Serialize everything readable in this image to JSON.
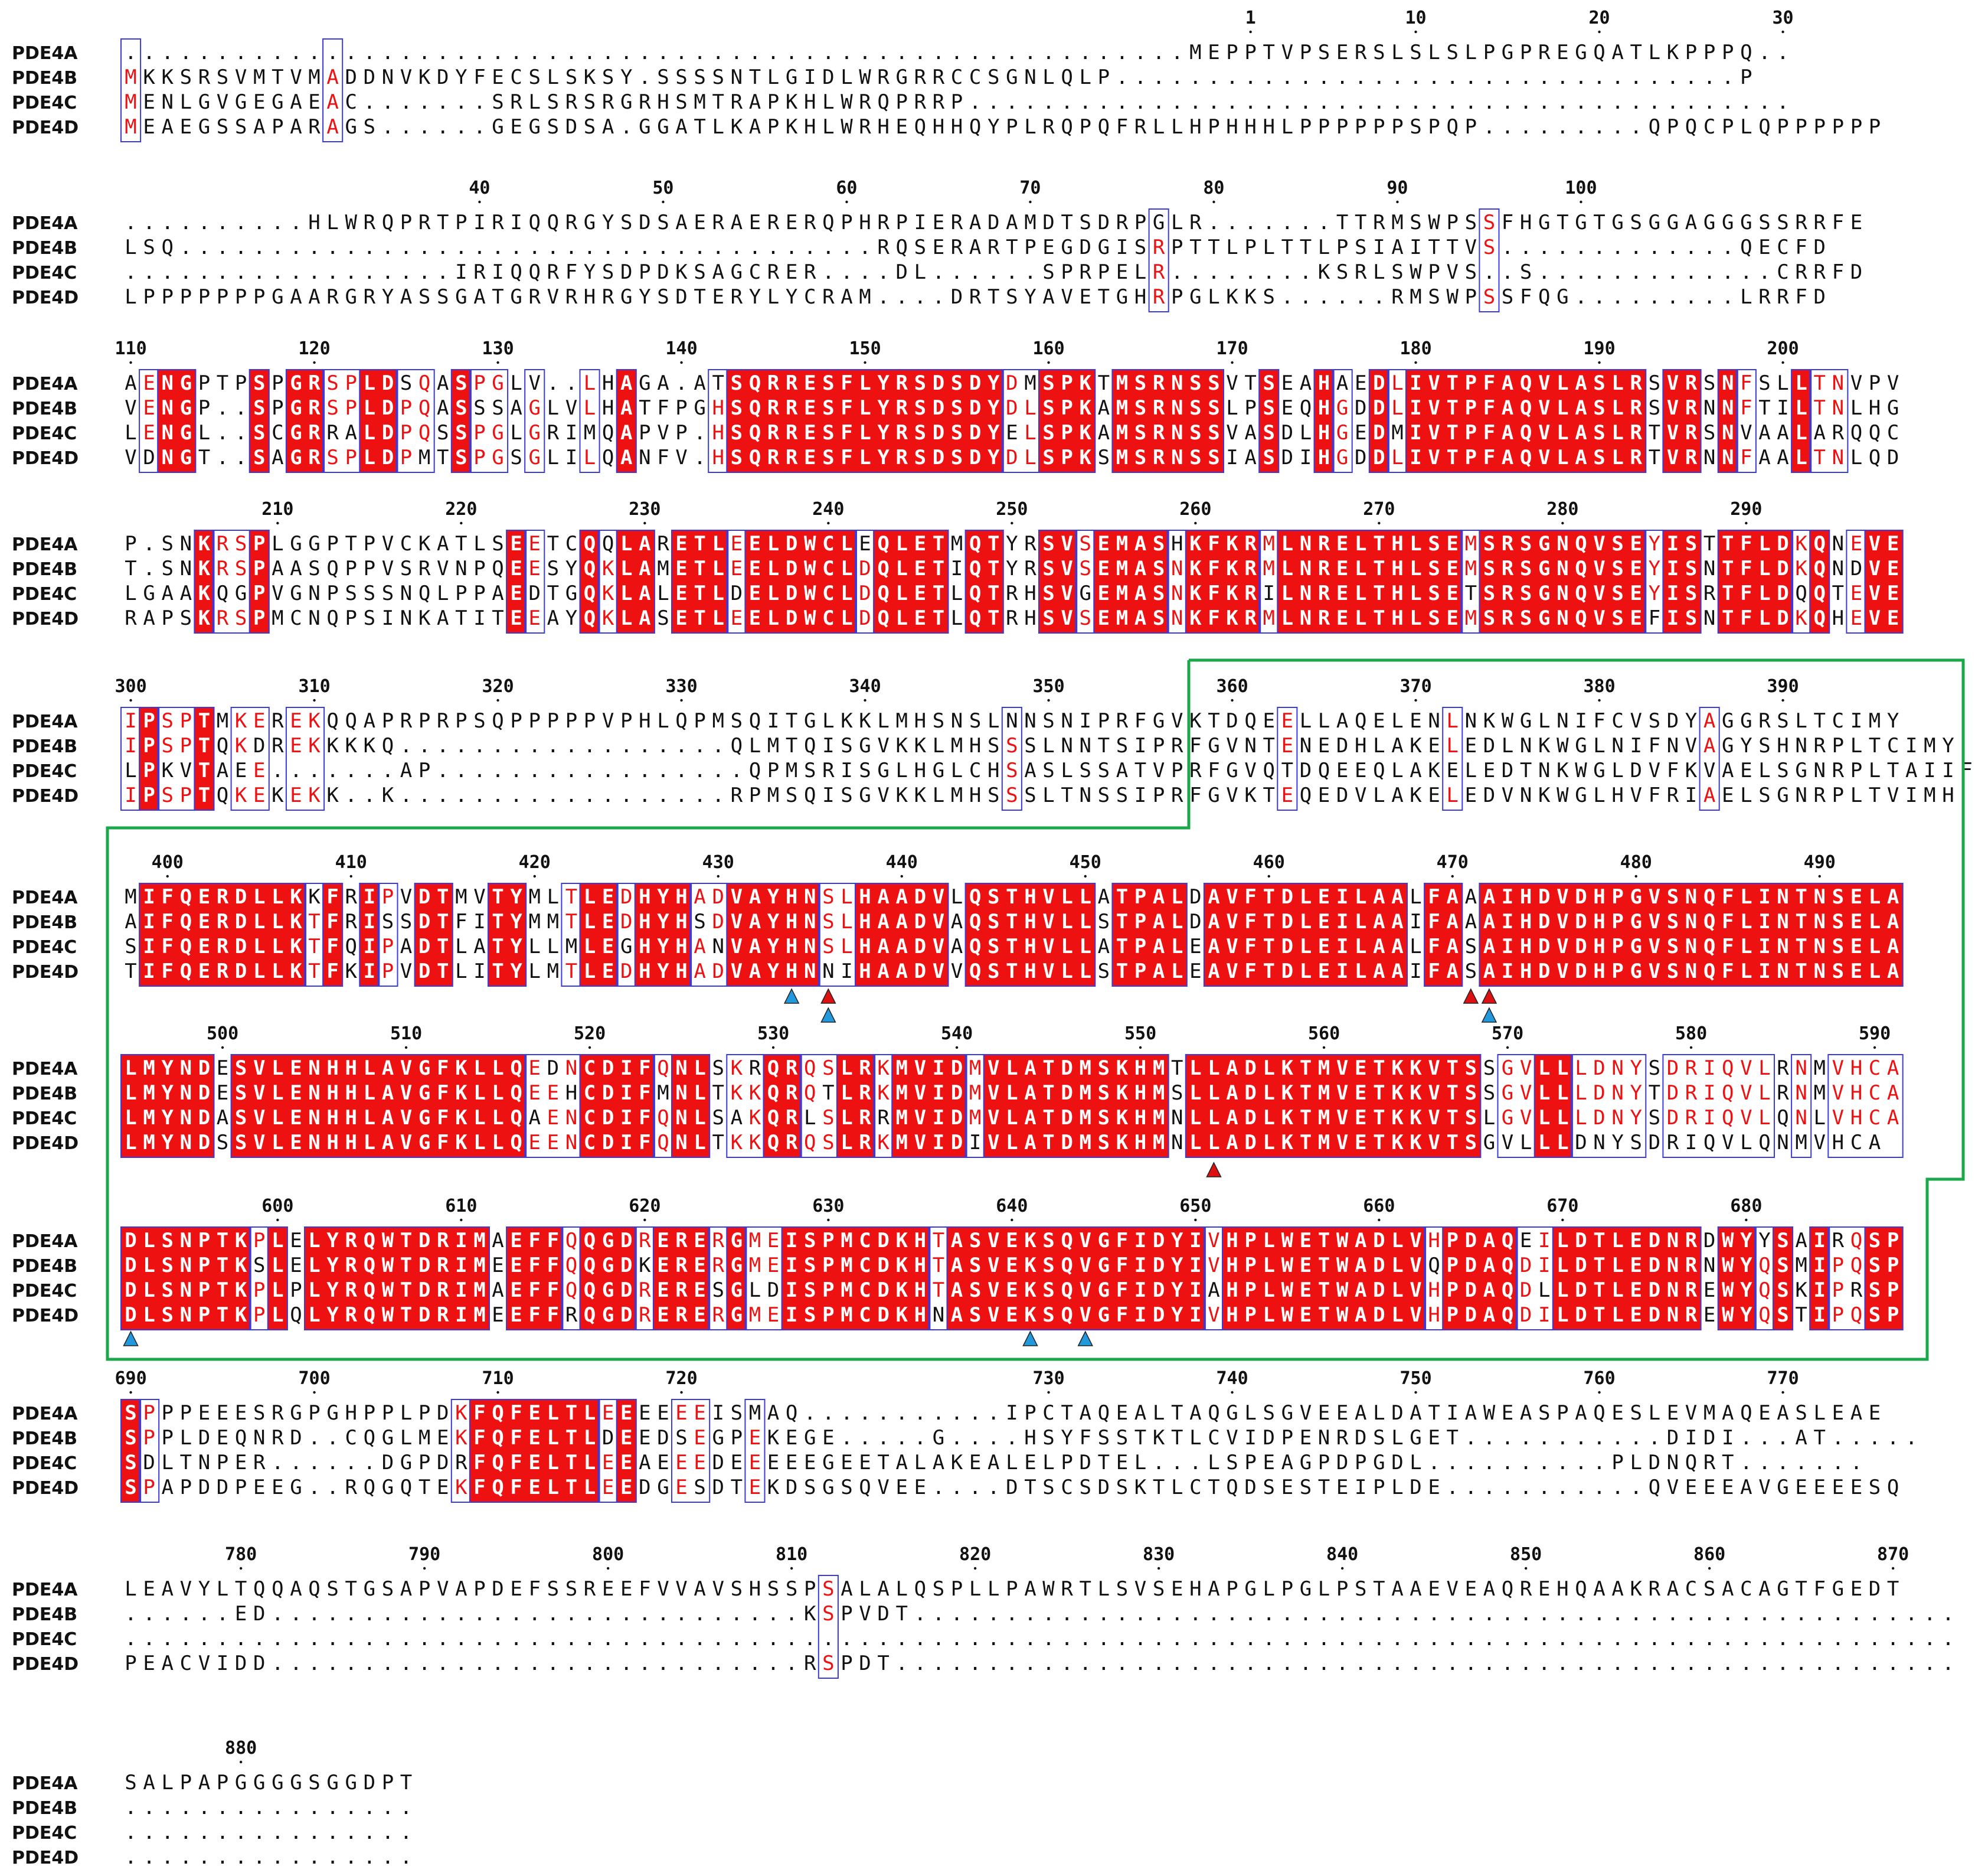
{
  "names": [
    "PDE4A",
    "PDE4B",
    "PDE4C",
    "PDE4D"
  ],
  "colors": {
    "red": "#ee1111",
    "blue_box": "#3b3bd9",
    "green_box": "#1aa84a",
    "text": "#111111",
    "marker_red": "#dd1111",
    "marker_blue": "#2299dd"
  },
  "blocks": [
    {
      "ruler": [
        {
          "label": "1",
          "col": 61
        },
        {
          "label": "10",
          "col": 70
        },
        {
          "label": "20",
          "col": 80
        },
        {
          "label": "30",
          "col": 90
        }
      ],
      "rows": [
        "..........................................................MEPPTVPSERSLSLSLPGPREGQATLKPPPQ..",
        "MKKSRSVMTVMADDNVKDYFECSLSKSY.SSSSNTLGIDLWRGRRCCSGNLQLP..................................P",
        "MENLGVGEGAEAC.......SRLSRSRGRHSMTRAPKHLWRQPRRP.............................................",
        "MEAEGSSAPARAGS......GEGSDSA.GGATLKAPKHLWRHEQHHQYPLRQPQFRLLHPHHHLPPPPPPSPQP.........QPQCPLQPPPPPP"
      ]
    },
    {
      "ruler": [
        {
          "label": "40",
          "col": 19
        },
        {
          "label": "50",
          "col": 29
        },
        {
          "label": "60",
          "col": 39
        },
        {
          "label": "70",
          "col": 49
        },
        {
          "label": "80",
          "col": 59
        },
        {
          "label": "90",
          "col": 69
        },
        {
          "label": "100",
          "col": 79
        }
      ],
      "rows": [
        "..........HLWRQPRTPIRIQQRGYSDSAERAERERQPHRPIERADAMDTSDRPGLR.......TTRMSWPSSFHGTGTGSGGAGGGSSRRFE",
        "LSQ......................................RQSERARTPEGDGISRPTTLPLTTLPSIAITTVS.............QECFD",
        "..................IRIQQRFYSDPDKSAGCRER....DL......SPRPELR........KSRLSWPVS..S.............CRRFD",
        "LPPPPPPPGAARGRYASSGATGRVRHRGYSDTERYLYCRAM....DRTSYAVETGHRPGLKKS......RMSWPSSFQG.........LRRFD"
      ]
    },
    {
      "ruler": [
        {
          "label": "110",
          "col": 0
        },
        {
          "label": "120",
          "col": 10
        },
        {
          "label": "130",
          "col": 20
        },
        {
          "label": "140",
          "col": 30
        },
        {
          "label": "150",
          "col": 40
        },
        {
          "label": "160",
          "col": 50
        },
        {
          "label": "170",
          "col": 60
        },
        {
          "label": "180",
          "col": 70
        },
        {
          "label": "190",
          "col": 80
        },
        {
          "label": "200",
          "col": 90
        }
      ],
      "rows": [
        "AENGPTPSPGRSPLDSQASPGLV..LHAGA.ATSQRRESFLYRSDSDYDMSPKTMSRNSSVTSEAHAEDLIVTPFAQVLASLRSVRSNFSLLTNVPV",
        "VENGP..SPGRSPLDPQASSSAGLVLHATFPGHSQRRESFLYRSDSDYDLSPKAMSRNSSLPSEQHGDDLIVTPFAQVLASLRSVRNNFTILTNLHG",
        "LENGL..SCGRRALDPQSSPGLGRIMQAPVP.HSQRRESFLYRSDSDYELSPKAMSRNSSVASDLHGEDMIVTPFAQVLASLRTVRSNVAALARQQC",
        "VDNGT..SAGRSPLDPMTSPGSGLILQANFV.HSQRRESFLYRSDSDYDLSPKSMSRNSSIASDIHGDDLIVTPFAQVLASLRTVRNNFAALTNLQD"
      ]
    },
    {
      "ruler": [
        {
          "label": "210",
          "col": 8
        },
        {
          "label": "220",
          "col": 18
        },
        {
          "label": "230",
          "col": 28
        },
        {
          "label": "240",
          "col": 38
        },
        {
          "label": "250",
          "col": 48
        },
        {
          "label": "260",
          "col": 58
        },
        {
          "label": "270",
          "col": 68
        },
        {
          "label": "280",
          "col": 78
        },
        {
          "label": "290",
          "col": 88
        }
      ],
      "rows": [
        "P.SNKRSPLGGPTPVCKATLSEETCQQLARETLEELDWCLEQLETMQTYRSVSEMASHKFKRMLNRELTHLSEMSRSGNQVSEYISTTFLDKQNEVE",
        "T.SNKRSPAASQPPVSRVNPQEESYQKLAMETLEELDWCLDQLETIQTYRSVSEMASNKFKRMLNRELTHLSEMSRSGNQVSEYISNTFLDKQNDVE",
        "LGAAKQGPVGNPSSSNQLPPAEDTGQKLALETLDELDWCLDQLETLQTRHSVGEMASNKFKRILNRELTHLSETSRSGNQVSEYISRTFLDQQTEVE",
        "RAPSKRSPMCNQPSINKATITEEAYQKLASETLEELDWCLDQLETLQTRHSVSEMASNKFKRMLNRELTHLSEMSRSGNQVSEFISNTFLDKQHEVE"
      ]
    },
    {
      "ruler": [
        {
          "label": "300",
          "col": 0
        },
        {
          "label": "310",
          "col": 10
        },
        {
          "label": "320",
          "col": 20
        },
        {
          "label": "330",
          "col": 30
        },
        {
          "label": "340",
          "col": 40
        },
        {
          "label": "350",
          "col": 50
        },
        {
          "label": "360",
          "col": 60
        },
        {
          "label": "370",
          "col": 70
        },
        {
          "label": "380",
          "col": 80
        },
        {
          "label": "390",
          "col": 90
        }
      ],
      "rows": [
        "IPSPTMKEREKQQAPRPRPSQPPPPPVPHLQPMSQITGLKKLMHSNSLNNSNIPRFGVKTDQEELLAQELENLNKWGLNIFCVSDYAGGRSLTCIMY",
        "IPSPTQKDREKKKKQ..................QLMTQISGVKKLMHSSSLNNTSIPRFGVNTENEDHLAKELEDLNKWGLNIFNVAGYSHNRPLTCIMY",
        "LPKVTAEE.......AP.................QPMSRISGLHGLCHSASLSSATVPRFGVQTDQEEQLAKELEDTNKWGLDVFKVAELSGNRPLTAIIF",
        "IPSPTQKEKEKK..K..................RPMSQISGVKKLMHSSSLTNSSIPRFGVKTEQEDVLAKELEDVNKWGLHVFRIAELSGNRPLTVIMH"
      ]
    },
    {
      "ruler": [
        {
          "label": "400",
          "col": 2
        },
        {
          "label": "410",
          "col": 12
        },
        {
          "label": "420",
          "col": 22
        },
        {
          "label": "430",
          "col": 32
        },
        {
          "label": "440",
          "col": 42
        },
        {
          "label": "450",
          "col": 52
        },
        {
          "label": "460",
          "col": 62
        },
        {
          "label": "470",
          "col": 72
        },
        {
          "label": "480",
          "col": 82
        },
        {
          "label": "490",
          "col": 92
        }
      ],
      "rows": [
        "MIFQERDLLKKFRIPVDTMVTYMLTLEDHYHADVAYHNSLHAADVLQSTHVLLATPALDAVFTDLEILAALFAAAIHDVDHPGVSNQFLINTNSELA",
        "AIFQERDLLKTFRISSDTFITYMMTLEDHYHSDVAYHNSLHAADVAQSTHVLLSTPALDAVFTDLEILAAIFAAAIHDVDHPGVSNQFLINTNSELA",
        "SIFQERDLLKTFQIPADTLATYLLMLEGHYHANVAYHNSLHAADVAQSTHVLLATPALEAVFTDLEILAALFASAIHDVDHPGVSNQFLINTNSELA",
        "TIFQERDLLKTFKIPVDTLITYLMTLEDHYHADVAYHNNIHAADVVQSTHVLLSTPALEAVFTDLEILAAIFASAIHDVDHPGVSNQFLINTNSELA"
      ]
    },
    {
      "ruler": [
        {
          "label": "500",
          "col": 5
        },
        {
          "label": "510",
          "col": 15
        },
        {
          "label": "520",
          "col": 25
        },
        {
          "label": "530",
          "col": 35
        },
        {
          "label": "540",
          "col": 45
        },
        {
          "label": "550",
          "col": 55
        },
        {
          "label": "560",
          "col": 65
        },
        {
          "label": "570",
          "col": 75
        },
        {
          "label": "580",
          "col": 85
        },
        {
          "label": "590",
          "col": 95
        }
      ],
      "rows": [
        "LMYNDESVLENHHLAVGFKLLQEDNCDIFQNLSKRQRQSLRKMVIDMVLATDMSKHMTLLADLKTMVETKKVTSSGVLLLDNYSDRIQVLRNMVHCA",
        "LMYNDESVLENHHLAVGFKLLQEEHCDIFMNLTKKQRQTLRKMVIDMVLATDMSKHMSLLADLKTMVETKKVTSSGVLLLDNYTDRIQVLRNMVHCA",
        "LMYNDASVLENHHLAVGFKLLQAENCDIFQNLSAKQRLSLRRMVIDMVLATDMSKHMNLLADLKTMVETKKVTSLGVLLLDNYSDRIQVLQNLVHCA",
        "LMYNDSSVLENHHLAVGFKLLQEENCDIFQNLTKKQRQSLRKMVIDIVLATDMSKHMNLLADLKTMVETKKVTSGVLLLDNYSDRIQVLQNMVHCA"
      ]
    },
    {
      "ruler": [
        {
          "label": "600",
          "col": 8
        },
        {
          "label": "610",
          "col": 18
        },
        {
          "label": "620",
          "col": 28
        },
        {
          "label": "630",
          "col": 38
        },
        {
          "label": "640",
          "col": 48
        },
        {
          "label": "650",
          "col": 58
        },
        {
          "label": "660",
          "col": 68
        },
        {
          "label": "670",
          "col": 78
        },
        {
          "label": "680",
          "col": 88
        }
      ],
      "rows": [
        "DLSNPTKPLELYRQWTDRIMAEFFQQGDRERERGMEISPMCDKHTASVEKSQVGFIDYIVHPLWETWADLVHPDAQEILDTLEDNRDWYYSAIRQSP",
        "DLSNPTKSLELYRQWTDRIMEEFFQQGDKERERGMEISPMCDKHTASVEKSQVGFIDYIVHPLWETWADLVQPDAQDILDTLEDNRNWYQSMIPQSP",
        "DLSNPTKPLPLYRQWTDRIMAEFFQQGDRERESGLDISPMCDKHTASVEKSQVGFIDYIAHPLWETWADLVHPDAQDLLDTLEDNREWYQSKIPRSP",
        "DLSNPTKPLQLYRQWTDRIMEEFFRQGDRERERGMEISPMCDKHNASVEKSQVGFIDYIVHPLWETWADLVHPDAQDILDTLEDNREWYQSTIPQSP"
      ]
    },
    {
      "ruler": [
        {
          "label": "690",
          "col": 0
        },
        {
          "label": "700",
          "col": 10
        },
        {
          "label": "710",
          "col": 20
        },
        {
          "label": "720",
          "col": 30
        },
        {
          "label": "730",
          "col": 50
        },
        {
          "label": "740",
          "col": 60
        },
        {
          "label": "750",
          "col": 70
        },
        {
          "label": "760",
          "col": 80
        },
        {
          "label": "770",
          "col": 90
        }
      ],
      "rows": [
        "SPPPEEESRGPGHPPLPDKFQFELTLEEEEEEISMAQ...........IPCTAQEALTAQGLSGVEEALDATIAWEASPAQESLEVMAQEASLEAE",
        "SPPLDEQNRD..CQGLMEKFQFELTLDEEDSEGPEKEGE.....G....HSYFSSTKTLCVIDPENRDSLGET...........DIDI...AT.....",
        "SDLTNPER......DGPDRFQFELTLEEAEEEDEEEEEGEETALAKEALELPDTEL...LSPEAGPDPGDL..........PLDNQRT.......",
        "SPAPDDPEEG..RQGQTEKFQFELTLEEDGESDTEKDSGSQVEE....DTSCSDSKTLCTQDSESTEIPLDE...........QVEEEAVGEEEESQ"
      ]
    },
    {
      "ruler": [
        {
          "label": "780",
          "col": 6
        },
        {
          "label": "790",
          "col": 16
        },
        {
          "label": "800",
          "col": 26
        },
        {
          "label": "810",
          "col": 36
        },
        {
          "label": "820",
          "col": 46
        },
        {
          "label": "830",
          "col": 56
        },
        {
          "label": "840",
          "col": 66
        },
        {
          "label": "850",
          "col": 76
        },
        {
          "label": "860",
          "col": 86
        },
        {
          "label": "870",
          "col": 96
        }
      ],
      "rows": [
        "LEAVYLTQQAQSTGSAPVAPDEFSSREEFVVAVSHSSPSALALQSPLLPAWRTLSVSEHAPGLPGLPSTAAEVEAQREHQAAKRACSACAGTFGEDT",
        "......ED.............................KSPVDT.........................................................",
        "....................................................................................................",
        "PEACVIDD.............................RSPDT.........................................................."
      ]
    },
    {
      "ruler": [
        {
          "label": "880",
          "col": 6
        }
      ],
      "rows": [
        "SALPAPGGGGSGGDPT",
        "................",
        "................",
        "................"
      ]
    }
  ]
}
